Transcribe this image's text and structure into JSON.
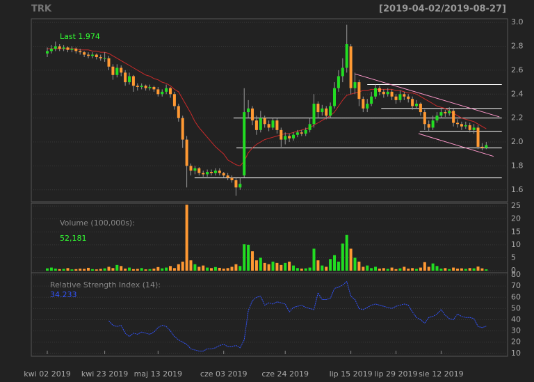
{
  "chart_data": {
    "type": "candlestick",
    "title": "TRK",
    "subtitle": "[2019-04-02/2019-08-27]",
    "last_label": "Last 1.974",
    "up_color": "#22dd22",
    "down_color": "#ff9933",
    "grid": true,
    "categories": [
      "kwi 02 2019",
      null,
      null,
      null,
      null,
      null,
      null,
      null,
      null,
      null,
      null,
      null,
      null,
      null,
      "kwi 23 2019",
      null,
      null,
      null,
      null,
      null,
      null,
      null,
      null,
      null,
      null,
      null,
      null,
      "maj 13 2019",
      null,
      null,
      null,
      null,
      null,
      null,
      null,
      null,
      null,
      null,
      null,
      null,
      null,
      null,
      null,
      "cze 03 2019",
      null,
      null,
      null,
      null,
      null,
      null,
      null,
      null,
      null,
      null,
      null,
      null,
      null,
      null,
      "cze 24 2019",
      null,
      null,
      null,
      null,
      null,
      null,
      null,
      null,
      null,
      null,
      null,
      null,
      null,
      null,
      null,
      "lip 15 2019",
      null,
      null,
      null,
      null,
      null,
      null,
      null,
      null,
      null,
      null,
      "lip 29 2019",
      null,
      null,
      null,
      null,
      null,
      null,
      null,
      null,
      null,
      null,
      "sie 12 2019",
      null,
      null,
      null,
      null,
      null,
      null,
      null,
      null,
      null,
      null,
      null
    ],
    "xlim": [
      -3.9,
      112.2
    ],
    "ylim": [
      1.5,
      3.03
    ],
    "yticks": [
      1.6,
      1.8,
      {
        "value": 2,
        "label": "2.0"
      },
      2.2,
      2.4,
      2.6,
      2.8,
      {
        "value": 3,
        "label": "3.0"
      }
    ],
    "open": [
      2.74,
      2.76,
      2.78,
      2.8,
      2.78,
      2.79,
      2.77,
      2.78,
      2.76,
      2.75,
      2.73,
      2.72,
      2.73,
      2.71,
      2.7,
      2.7,
      2.63,
      2.56,
      2.62,
      2.58,
      2.5,
      2.55,
      2.47,
      2.46,
      2.47,
      2.45,
      2.46,
      2.44,
      2.4,
      2.42,
      2.45,
      2.4,
      2.3,
      2.2,
      2.02,
      1.8,
      1.76,
      1.78,
      1.74,
      1.73,
      1.75,
      1.74,
      1.76,
      1.74,
      1.72,
      1.7,
      1.68,
      1.62,
      1.72,
      2.25,
      2.28,
      2.18,
      2.1,
      2.2,
      2.15,
      2.12,
      2.18,
      2.1,
      2.02,
      2.05,
      2.03,
      2.06,
      2.08,
      2.07,
      2.1,
      2.15,
      2.32,
      2.25,
      2.28,
      2.22,
      2.3,
      2.45,
      2.55,
      2.62,
      2.8,
      2.45,
      2.5,
      2.36,
      2.28,
      2.32,
      2.38,
      2.45,
      2.42,
      2.4,
      2.42,
      2.38,
      2.35,
      2.4,
      2.38,
      2.36,
      2.3,
      2.32,
      2.25,
      2.15,
      2.12,
      2.18,
      2.22,
      2.25,
      2.24,
      2.26,
      2.16,
      2.15,
      2.13,
      2.14,
      2.1,
      2.12,
      1.96,
      1.95
    ],
    "high": [
      2.79,
      2.81,
      2.84,
      2.82,
      2.81,
      2.8,
      2.8,
      2.79,
      2.78,
      2.76,
      2.75,
      2.75,
      2.74,
      2.73,
      2.75,
      2.72,
      2.65,
      2.65,
      2.64,
      2.6,
      2.58,
      2.56,
      2.49,
      2.49,
      2.48,
      2.48,
      2.47,
      2.46,
      2.44,
      2.48,
      2.46,
      2.42,
      2.32,
      2.22,
      2.05,
      1.82,
      1.8,
      1.79,
      1.76,
      1.77,
      1.77,
      1.78,
      1.78,
      1.75,
      1.74,
      1.72,
      1.7,
      1.7,
      2.45,
      2.35,
      2.3,
      2.22,
      2.26,
      2.22,
      2.18,
      2.2,
      2.2,
      2.12,
      2.08,
      2.07,
      2.08,
      2.1,
      2.1,
      2.12,
      2.2,
      2.4,
      2.34,
      2.31,
      2.3,
      2.33,
      2.5,
      2.6,
      2.7,
      2.98,
      2.82,
      2.58,
      2.52,
      2.38,
      2.36,
      2.42,
      2.48,
      2.47,
      2.44,
      2.45,
      2.44,
      2.4,
      2.43,
      2.42,
      2.4,
      2.38,
      2.35,
      2.33,
      2.27,
      2.18,
      2.22,
      2.25,
      2.28,
      2.27,
      2.29,
      2.28,
      2.19,
      2.17,
      2.17,
      2.16,
      2.15,
      2.14,
      1.99,
      2.0
    ],
    "low": [
      2.71,
      2.74,
      2.76,
      2.76,
      2.76,
      2.75,
      2.75,
      2.74,
      2.73,
      2.71,
      2.7,
      2.7,
      2.69,
      2.68,
      2.67,
      2.6,
      2.52,
      2.54,
      2.55,
      2.47,
      2.48,
      2.42,
      2.43,
      2.44,
      2.43,
      2.43,
      2.42,
      2.38,
      2.38,
      2.4,
      2.37,
      2.27,
      2.17,
      1.95,
      1.62,
      1.72,
      1.73,
      1.72,
      1.71,
      1.71,
      1.72,
      1.72,
      1.72,
      1.7,
      1.68,
      1.66,
      1.55,
      1.6,
      1.7,
      2.2,
      2.14,
      2.06,
      2.08,
      2.12,
      2.09,
      2.1,
      2.07,
      1.96,
      1.98,
      2.0,
      2.01,
      2.04,
      2.05,
      2.05,
      2.08,
      2.12,
      2.2,
      2.22,
      2.19,
      2.2,
      2.28,
      2.42,
      2.5,
      2.58,
      2.4,
      2.4,
      2.3,
      2.25,
      2.25,
      2.3,
      2.36,
      2.39,
      2.37,
      2.38,
      2.35,
      2.32,
      2.33,
      2.35,
      2.33,
      2.27,
      2.28,
      2.22,
      2.1,
      2.09,
      2.1,
      2.16,
      2.2,
      2.21,
      2.22,
      2.13,
      2.12,
      2.1,
      2.11,
      2.08,
      2.07,
      1.94,
      1.93,
      1.94
    ],
    "close": [
      2.76,
      2.78,
      2.8,
      2.78,
      2.79,
      2.77,
      2.78,
      2.76,
      2.75,
      2.73,
      2.72,
      2.73,
      2.71,
      2.7,
      2.7,
      2.63,
      2.56,
      2.62,
      2.58,
      2.5,
      2.55,
      2.47,
      2.46,
      2.47,
      2.45,
      2.46,
      2.44,
      2.4,
      2.42,
      2.45,
      2.4,
      2.3,
      2.2,
      2.02,
      1.8,
      1.76,
      1.78,
      1.74,
      1.73,
      1.75,
      1.74,
      1.76,
      1.74,
      1.72,
      1.7,
      1.68,
      1.62,
      1.65,
      2.25,
      2.28,
      2.18,
      2.1,
      2.2,
      2.15,
      2.12,
      2.18,
      2.1,
      2.02,
      2.05,
      2.03,
      2.06,
      2.08,
      2.07,
      2.1,
      2.15,
      2.32,
      2.25,
      2.28,
      2.22,
      2.3,
      2.45,
      2.55,
      2.62,
      2.82,
      2.45,
      2.5,
      2.36,
      2.28,
      2.32,
      2.38,
      2.45,
      2.42,
      2.4,
      2.42,
      2.38,
      2.35,
      2.4,
      2.38,
      2.36,
      2.3,
      2.32,
      2.25,
      2.15,
      2.12,
      2.18,
      2.22,
      2.25,
      2.24,
      2.26,
      2.16,
      2.15,
      2.13,
      2.14,
      2.1,
      2.12,
      1.96,
      1.95,
      1.974
    ],
    "ma": {
      "color": "#cc2a2a",
      "values": [
        2.78,
        2.78,
        2.78,
        2.78,
        2.78,
        2.78,
        2.78,
        2.78,
        2.77,
        2.77,
        2.77,
        2.76,
        2.76,
        2.75,
        2.75,
        2.74,
        2.72,
        2.7,
        2.68,
        2.66,
        2.64,
        2.62,
        2.6,
        2.58,
        2.56,
        2.55,
        2.53,
        2.52,
        2.5,
        2.49,
        2.47,
        2.44,
        2.42,
        2.36,
        2.3,
        2.24,
        2.17,
        2.12,
        2.08,
        2.04,
        2.0,
        1.96,
        1.93,
        1.9,
        1.85,
        1.83,
        1.81,
        1.8,
        1.84,
        1.91,
        1.95,
        1.98,
        2.0,
        2.02,
        2.03,
        2.04,
        2.05,
        2.06,
        2.07,
        2.07,
        2.08,
        2.09,
        2.1,
        2.11,
        2.12,
        2.14,
        2.16,
        2.18,
        2.2,
        2.22,
        2.25,
        2.3,
        2.35,
        2.39,
        2.4,
        2.41,
        2.42,
        2.43,
        2.43,
        2.44,
        2.44,
        2.44,
        2.44,
        2.44,
        2.44,
        2.43,
        2.43,
        2.42,
        2.41,
        2.41,
        2.4,
        2.38,
        2.36,
        2.34,
        2.32,
        2.3,
        2.29,
        2.28,
        2.26,
        2.24,
        2.22,
        2.2,
        2.19,
        2.18,
        2.17,
        2.15,
        2.13,
        2.11
      ]
    },
    "lines": [
      {
        "x0": 78.0,
        "y0": 2.48,
        "x1": 110.8,
        "y1": 2.48,
        "color": "#ffffff"
      },
      {
        "x0": 81.4,
        "y0": 2.28,
        "x1": 110.8,
        "y1": 2.28,
        "color": "#ffffff"
      },
      {
        "x0": 45.4,
        "y0": 2.2,
        "x1": 110.8,
        "y1": 2.2,
        "color": "#ffffff"
      },
      {
        "x0": 90.8,
        "y0": 2.09,
        "x1": 110.8,
        "y1": 2.09,
        "color": "#ffffff"
      },
      {
        "x0": 46.1,
        "y0": 1.95,
        "x1": 110.8,
        "y1": 1.95,
        "color": "#ffffff"
      },
      {
        "x0": 35.9,
        "y0": 1.7,
        "x1": 110.8,
        "y1": 1.7,
        "color": "#ffffff"
      },
      {
        "x0": 74.9,
        "y0": 2.57,
        "x1": 110.2,
        "y1": 2.21,
        "color": "#ff99cc"
      },
      {
        "x0": 90.5,
        "y0": 2.07,
        "x1": 108.8,
        "y1": 1.88,
        "color": "#ff99cc"
      }
    ],
    "volume": {
      "label": "Volume (100,000s):",
      "last_label": "52,181",
      "ylim": [
        -0.8,
        26.1
      ],
      "yticks": [
        0,
        5,
        10,
        15,
        20,
        25
      ],
      "values": [
        0.9,
        1.2,
        0.8,
        0.6,
        0.7,
        1.0,
        0.5,
        0.6,
        0.8,
        0.7,
        1.1,
        0.6,
        0.5,
        0.7,
        0.9,
        1.5,
        1.0,
        2.2,
        1.8,
        0.8,
        1.2,
        0.6,
        0.7,
        1.0,
        0.5,
        0.6,
        0.8,
        1.4,
        0.9,
        1.2,
        1.8,
        1.0,
        2.5,
        3.5,
        25.5,
        4.0,
        2.5,
        1.5,
        2.0,
        1.2,
        1.0,
        1.4,
        1.1,
        0.8,
        1.0,
        1.5,
        2.5,
        1.8,
        10.2,
        10.0,
        7.5,
        4.0,
        5.0,
        3.0,
        2.5,
        3.5,
        3.0,
        2.2,
        3.0,
        3.5,
        2.0,
        1.0,
        0.8,
        0.9,
        1.2,
        8.5,
        4.0,
        2.0,
        1.5,
        4.5,
        6.0,
        3.5,
        10.5,
        13.8,
        8.5,
        5.0,
        3.5,
        1.5,
        2.0,
        1.0,
        1.5,
        0.8,
        1.0,
        0.7,
        1.2,
        0.6,
        0.9,
        1.5,
        0.8,
        1.0,
        0.7,
        1.2,
        3.3,
        1.5,
        2.8,
        1.8,
        0.8,
        1.0,
        0.6,
        1.2,
        0.8,
        0.9,
        0.7,
        1.0,
        0.9,
        1.6,
        0.9,
        0.52181
      ]
    },
    "rsi": {
      "label": "Relative Strength Index (14):",
      "last_label": "34.233",
      "color": "#3355ff",
      "ylim": [
        7.4,
        81.9
      ],
      "yticks": [
        10,
        20,
        30,
        40,
        50,
        60,
        70,
        80
      ],
      "values": [
        null,
        null,
        null,
        null,
        null,
        null,
        null,
        null,
        null,
        null,
        null,
        null,
        null,
        null,
        null,
        39,
        35,
        34,
        35,
        28,
        25,
        28,
        27,
        29,
        28,
        27,
        29,
        33,
        35,
        34,
        30,
        25,
        22,
        20,
        18,
        14,
        13,
        12,
        12,
        14,
        14,
        15,
        17,
        18,
        16,
        16,
        17,
        15,
        22,
        48,
        57,
        60,
        61,
        53,
        55,
        54,
        56,
        55,
        54,
        47,
        51,
        52,
        53,
        51,
        50,
        49,
        64,
        58,
        58,
        59,
        68,
        69,
        71,
        74,
        61,
        58,
        50,
        49,
        51,
        53,
        54,
        53,
        52,
        51,
        50,
        52,
        53,
        54,
        53,
        47,
        42,
        40,
        37,
        42,
        43,
        45,
        49,
        44,
        41,
        40,
        45,
        43,
        42,
        42,
        41,
        34,
        33,
        34.233
      ]
    }
  }
}
